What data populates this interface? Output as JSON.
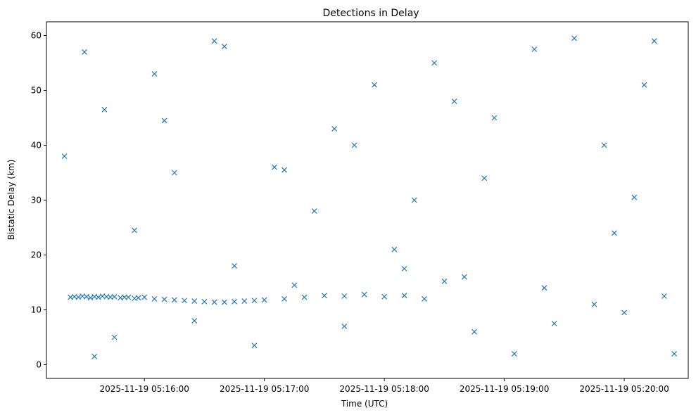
{
  "chart_data": {
    "type": "scatter",
    "title": "Detections in Delay",
    "xlabel": "Time (UTC)",
    "ylabel": "Bistatic Delay (km)",
    "x_ticks": [
      "2025-11-19 05:16:00",
      "2025-11-19 05:17:00",
      "2025-11-19 05:18:00",
      "2025-11-19 05:19:00",
      "2025-11-19 05:20:00"
    ],
    "y_ticks": [
      "0",
      "10",
      "20",
      "30",
      "40",
      "50",
      "60"
    ],
    "xlim": [
      "2025-11-19 05:15:11",
      "2025-11-19 05:20:32"
    ],
    "ylim": [
      -2.5,
      62.5
    ],
    "grid": false,
    "legend": "none",
    "marker": "x",
    "color": "#1f77b4",
    "series": [
      {
        "x": [
          "2025-11-19 05:15:23",
          "2025-11-19 05:15:25",
          "2025-11-19 05:15:27",
          "2025-11-19 05:15:29",
          "2025-11-19 05:15:31",
          "2025-11-19 05:15:33",
          "2025-11-19 05:15:35",
          "2025-11-19 05:15:37",
          "2025-11-19 05:15:39",
          "2025-11-19 05:15:41",
          "2025-11-19 05:15:43",
          "2025-11-19 05:15:45",
          "2025-11-19 05:15:48",
          "2025-11-19 05:15:50",
          "2025-11-19 05:15:52",
          "2025-11-19 05:15:55",
          "2025-11-19 05:15:57",
          "2025-11-19 05:16:00",
          "2025-11-19 05:16:05",
          "2025-11-19 05:16:10",
          "2025-11-19 05:16:15",
          "2025-11-19 05:16:20",
          "2025-11-19 05:16:25",
          "2025-11-19 05:16:30",
          "2025-11-19 05:16:35",
          "2025-11-19 05:16:40",
          "2025-11-19 05:16:45",
          "2025-11-19 05:16:50",
          "2025-11-19 05:16:55",
          "2025-11-19 05:17:00",
          "2025-11-19 05:17:10",
          "2025-11-19 05:17:20",
          "2025-11-19 05:17:30",
          "2025-11-19 05:17:40",
          "2025-11-19 05:17:50",
          "2025-11-19 05:18:00",
          "2025-11-19 05:18:10",
          "2025-11-19 05:18:20",
          "2025-11-19 05:18:30",
          "2025-11-19 05:18:40",
          "2025-11-19 05:15:30",
          "2025-11-19 05:15:45",
          "2025-11-19 05:16:10",
          "2025-11-19 05:16:40",
          "2025-11-19 05:17:05",
          "2025-11-19 05:17:35",
          "2025-11-19 05:18:05",
          "2025-11-19 05:18:35",
          "2025-11-19 05:19:05",
          "2025-11-19 05:19:35",
          "2025-11-19 05:20:05",
          "2025-11-19 05:20:20",
          "2025-11-19 05:15:20",
          "2025-11-19 05:15:55",
          "2025-11-19 05:16:25",
          "2025-11-19 05:16:55",
          "2025-11-19 05:17:25",
          "2025-11-19 05:17:55",
          "2025-11-19 05:18:25",
          "2025-11-19 05:18:55",
          "2025-11-19 05:19:25",
          "2025-11-19 05:19:55",
          "2025-11-19 05:20:15",
          "2025-11-19 05:15:40",
          "2025-11-19 05:16:15",
          "2025-11-19 05:16:45",
          "2025-11-19 05:17:15",
          "2025-11-19 05:17:45",
          "2025-11-19 05:18:15",
          "2025-11-19 05:18:45",
          "2025-11-19 05:19:15",
          "2025-11-19 05:19:45",
          "2025-11-19 05:20:10",
          "2025-11-19 05:20:25",
          "2025-11-19 05:15:35",
          "2025-11-19 05:16:05",
          "2025-11-19 05:16:35",
          "2025-11-19 05:17:10",
          "2025-11-19 05:17:40",
          "2025-11-19 05:18:10",
          "2025-11-19 05:18:50",
          "2025-11-19 05:19:20",
          "2025-11-19 05:19:50",
          "2025-11-19 05:20:00"
        ],
        "y": [
          12.3,
          12.4,
          12.3,
          12.5,
          12.4,
          12.2,
          12.4,
          12.3,
          12.5,
          12.4,
          12.3,
          12.4,
          12.2,
          12.3,
          12.3,
          12.1,
          12.2,
          12.3,
          12.0,
          11.9,
          11.8,
          11.7,
          11.6,
          11.5,
          11.4,
          11.4,
          11.5,
          11.6,
          11.7,
          11.8,
          12.0,
          12.3,
          12.6,
          12.5,
          12.8,
          12.4,
          12.6,
          12.0,
          15.2,
          16.0,
          57.0,
          5.0,
          44.5,
          58.0,
          36.0,
          43.0,
          21.0,
          48.0,
          2.0,
          59.5,
          30.5,
          12.5,
          38.0,
          24.5,
          8.0,
          3.5,
          28.0,
          51.0,
          55.0,
          45.0,
          7.5,
          24.0,
          59.0,
          46.5,
          35.0,
          18.0,
          14.5,
          40.0,
          30.0,
          6.0,
          57.5,
          11.0,
          51.0,
          2.0,
          1.5,
          53.0,
          59.0,
          35.5,
          7.0,
          17.5,
          34.0,
          14.0,
          40.0,
          9.5
        ]
      }
    ]
  }
}
